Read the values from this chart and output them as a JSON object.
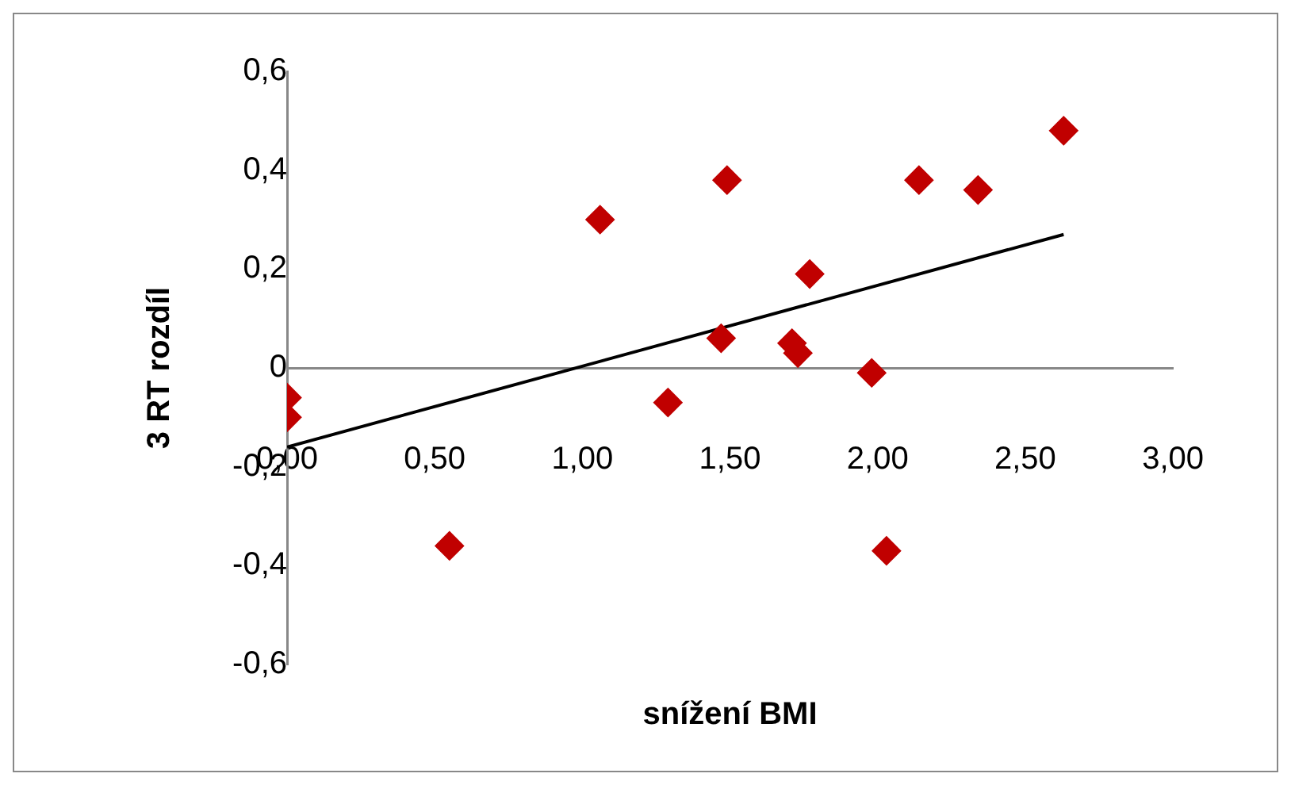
{
  "chart_data": {
    "type": "scatter",
    "xlabel": "snížení BMI",
    "ylabel": "3 RT rozdíl",
    "marker": "diamond",
    "grid": false,
    "legend": false,
    "xlim": [
      0,
      3
    ],
    "xticks": [
      {
        "value": 0,
        "label": "0,00"
      },
      {
        "value": 0.5,
        "label": "0,50"
      },
      {
        "value": 1,
        "label": "1,00"
      },
      {
        "value": 1.5,
        "label": "1,50"
      },
      {
        "value": 2,
        "label": "2,00"
      },
      {
        "value": 2.5,
        "label": "2,50"
      },
      {
        "value": 3,
        "label": "3,00"
      }
    ],
    "ylim": [
      -0.6,
      0.6
    ],
    "yticks": [
      {
        "value": -0.6,
        "label": "-0,6"
      },
      {
        "value": -0.4,
        "label": "-0,4"
      },
      {
        "value": -0.2,
        "label": "-0,2"
      },
      {
        "value": 0,
        "label": "0"
      },
      {
        "value": 0.2,
        "label": "0,2"
      },
      {
        "value": 0.4,
        "label": "0,4"
      },
      {
        "value": 0.6,
        "label": "0,6"
      }
    ],
    "series": [
      {
        "color": "#c00000",
        "x": [
          0,
          0,
          0.55,
          1.06,
          1.29,
          1.47,
          1.49,
          1.71,
          1.73,
          1.77,
          1.98,
          2.03,
          2.14,
          2.34,
          2.63
        ],
        "values": [
          -0.06,
          -0.1,
          -0.36,
          0.3,
          -0.07,
          0.06,
          0.38,
          0.05,
          0.03,
          0.19,
          -0.01,
          -0.37,
          0.38,
          0.36,
          0.48
        ]
      },
      {
        "type": "line",
        "color": "#000000",
        "marker": "none",
        "x": [
          0,
          2.63
        ],
        "values": [
          -0.16,
          0.27
        ]
      }
    ]
  }
}
